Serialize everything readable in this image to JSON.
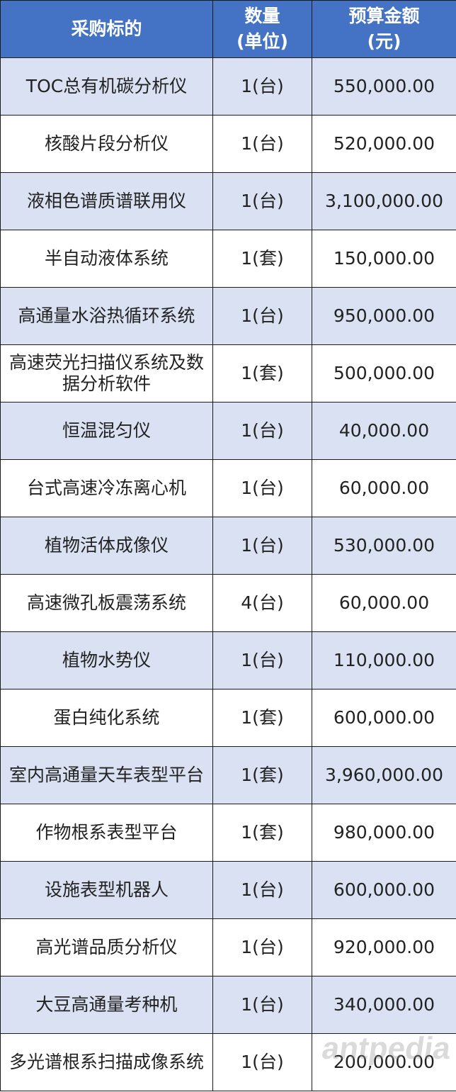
{
  "table": {
    "headers": [
      "采购标的",
      "数量\n(单位)",
      "预算金额\n(元)"
    ],
    "rows": [
      [
        "TOC总有机碳分析仪",
        "1(台)",
        "550,000.00"
      ],
      [
        "核酸片段分析仪",
        "1(台)",
        "520,000.00"
      ],
      [
        "液相色谱质谱联用仪",
        "1(台)",
        "3,100,000.00"
      ],
      [
        "半自动液体系统",
        "1(套)",
        "150,000.00"
      ],
      [
        "高通量水浴热循环系统",
        "1(台)",
        "950,000.00"
      ],
      [
        "高速荧光扫描仪系统及数据分析软件",
        "1(套)",
        "500,000.00"
      ],
      [
        "恒温混匀仪",
        "1(台)",
        "40,000.00"
      ],
      [
        "台式高速冷冻离心机",
        "1(台)",
        "60,000.00"
      ],
      [
        "植物活体成像仪",
        "1(台)",
        "530,000.00"
      ],
      [
        "高速微孔板震荡系统",
        "4(台)",
        "60,000.00"
      ],
      [
        "植物水势仪",
        "1(台)",
        "110,000.00"
      ],
      [
        "蛋白纯化系统",
        "1(套)",
        "600,000.00"
      ],
      [
        "室内高通量天车表型平台",
        "1(套)",
        "3,960,000.00"
      ],
      [
        "作物根系表型平台",
        "1(套)",
        "980,000.00"
      ],
      [
        "设施表型机器人",
        "1(台)",
        "600,000.00"
      ],
      [
        "高光谱品质分析仪",
        "1(台)",
        "920,000.00"
      ],
      [
        "大豆高通量考种机",
        "1(台)",
        "340,000.00"
      ],
      [
        "多光谱根系扫描成像系统",
        "1(台)",
        "200,000.00"
      ]
    ]
  },
  "watermark": "antpedia",
  "colors": {
    "header": "#4472c4",
    "shaded_row": "#d9e1f2"
  }
}
